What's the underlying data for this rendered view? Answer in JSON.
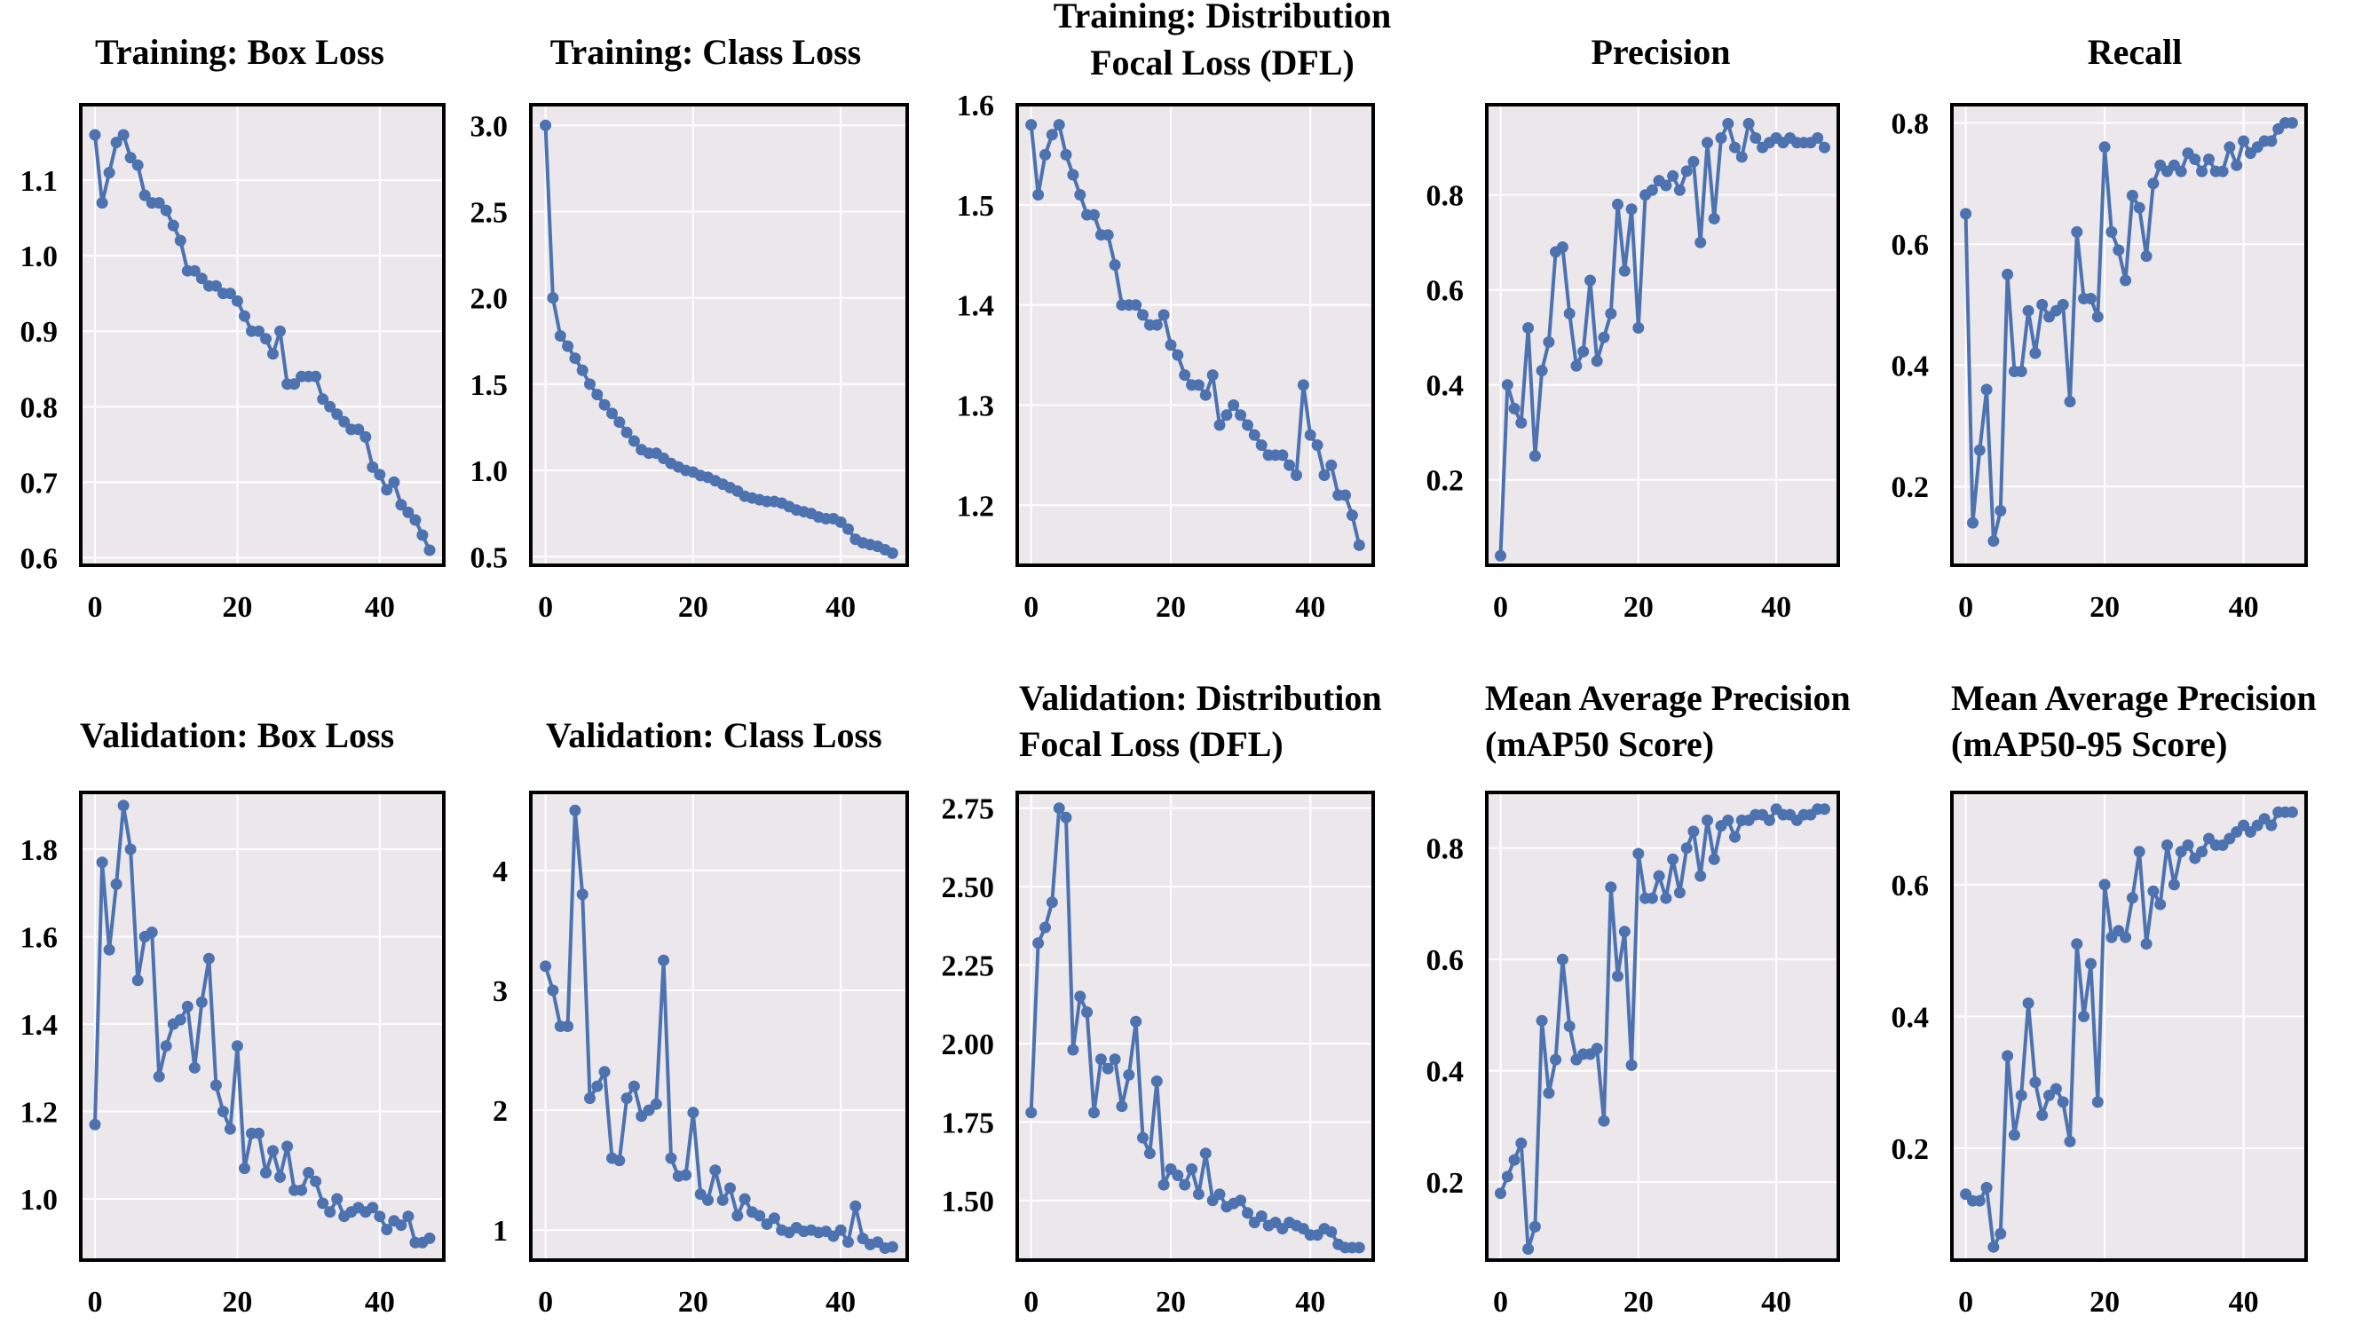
{
  "colors": {
    "line": "#4c72b0",
    "panel_bg": "#ebe7eb",
    "grid": "#ffffff",
    "frame": "#000000"
  },
  "chart_data": [
    {
      "type": "line",
      "title_lines": [
        "Training: Box Loss"
      ],
      "x": [
        0,
        1,
        2,
        3,
        4,
        5,
        6,
        7,
        8,
        9,
        10,
        11,
        12,
        13,
        14,
        15,
        16,
        17,
        18,
        19,
        20,
        21,
        22,
        23,
        24,
        25,
        26,
        27,
        28,
        29,
        30,
        31,
        32,
        33,
        34,
        35,
        36,
        37,
        38,
        39,
        40,
        41,
        42,
        43,
        44,
        45,
        46,
        47
      ],
      "values": [
        1.16,
        1.07,
        1.11,
        1.15,
        1.16,
        1.13,
        1.12,
        1.08,
        1.07,
        1.07,
        1.06,
        1.04,
        1.02,
        0.98,
        0.98,
        0.97,
        0.96,
        0.96,
        0.95,
        0.95,
        0.94,
        0.92,
        0.9,
        0.9,
        0.89,
        0.87,
        0.9,
        0.83,
        0.83,
        0.84,
        0.84,
        0.84,
        0.81,
        0.8,
        0.79,
        0.78,
        0.77,
        0.77,
        0.76,
        0.72,
        0.71,
        0.69,
        0.7,
        0.67,
        0.66,
        0.65,
        0.63,
        0.61
      ],
      "xlim": [
        -2,
        49
      ],
      "ylim": [
        0.59,
        1.2
      ],
      "xticks": [
        0,
        20,
        40
      ],
      "yticks": [
        0.6,
        0.7,
        0.8,
        0.9,
        1.0,
        1.1
      ],
      "yticklabels": [
        "0.6",
        "0.7",
        "0.8",
        "0.9",
        "1.0",
        "1.1"
      ]
    },
    {
      "type": "line",
      "title_lines": [
        "Training: Class Loss"
      ],
      "x": [
        0,
        1,
        2,
        3,
        4,
        5,
        6,
        7,
        8,
        9,
        10,
        11,
        12,
        13,
        14,
        15,
        16,
        17,
        18,
        19,
        20,
        21,
        22,
        23,
        24,
        25,
        26,
        27,
        28,
        29,
        30,
        31,
        32,
        33,
        34,
        35,
        36,
        37,
        38,
        39,
        40,
        41,
        42,
        43,
        44,
        45,
        46,
        47
      ],
      "values": [
        3.0,
        2.0,
        1.78,
        1.72,
        1.65,
        1.58,
        1.5,
        1.44,
        1.38,
        1.33,
        1.28,
        1.22,
        1.17,
        1.12,
        1.1,
        1.1,
        1.07,
        1.04,
        1.02,
        1.0,
        0.99,
        0.97,
        0.96,
        0.94,
        0.92,
        0.9,
        0.88,
        0.85,
        0.84,
        0.83,
        0.82,
        0.82,
        0.81,
        0.79,
        0.77,
        0.76,
        0.75,
        0.73,
        0.72,
        0.72,
        0.7,
        0.66,
        0.6,
        0.58,
        0.57,
        0.56,
        0.54,
        0.52
      ],
      "xlim": [
        -2,
        49
      ],
      "ylim": [
        0.45,
        3.12
      ],
      "xticks": [
        0,
        20,
        40
      ],
      "yticks": [
        0.5,
        1.0,
        1.5,
        2.0,
        2.5,
        3.0
      ],
      "yticklabels": [
        "0.5",
        "1.0",
        "1.5",
        "2.0",
        "2.5",
        "3.0"
      ]
    },
    {
      "type": "line",
      "title_lines": [
        "Training: Distribution",
        "Focal Loss (DFL)"
      ],
      "x": [
        0,
        1,
        2,
        3,
        4,
        5,
        6,
        7,
        8,
        9,
        10,
        11,
        12,
        13,
        14,
        15,
        16,
        17,
        18,
        19,
        20,
        21,
        22,
        23,
        24,
        25,
        26,
        27,
        28,
        29,
        30,
        31,
        32,
        33,
        34,
        35,
        36,
        37,
        38,
        39,
        40,
        41,
        42,
        43,
        44,
        45,
        46,
        47
      ],
      "values": [
        1.58,
        1.51,
        1.55,
        1.57,
        1.58,
        1.55,
        1.53,
        1.51,
        1.49,
        1.49,
        1.47,
        1.47,
        1.44,
        1.4,
        1.4,
        1.4,
        1.39,
        1.38,
        1.38,
        1.39,
        1.36,
        1.35,
        1.33,
        1.32,
        1.32,
        1.31,
        1.33,
        1.28,
        1.29,
        1.3,
        1.29,
        1.28,
        1.27,
        1.26,
        1.25,
        1.25,
        1.25,
        1.24,
        1.23,
        1.32,
        1.27,
        1.26,
        1.23,
        1.24,
        1.21,
        1.21,
        1.19,
        1.16
      ],
      "xlim": [
        -2,
        49
      ],
      "ylim": [
        1.14,
        1.6
      ],
      "xticks": [
        0,
        20,
        40
      ],
      "yticks": [
        1.2,
        1.3,
        1.4,
        1.5,
        1.6
      ],
      "yticklabels": [
        "1.2",
        "1.3",
        "1.4",
        "1.5",
        "1.6"
      ]
    },
    {
      "type": "line",
      "title_lines": [
        "Precision"
      ],
      "x": [
        0,
        1,
        2,
        3,
        4,
        5,
        6,
        7,
        8,
        9,
        10,
        11,
        12,
        13,
        14,
        15,
        16,
        17,
        18,
        19,
        20,
        21,
        22,
        23,
        24,
        25,
        26,
        27,
        28,
        29,
        30,
        31,
        32,
        33,
        34,
        35,
        36,
        37,
        38,
        39,
        40,
        41,
        42,
        43,
        44,
        45,
        46,
        47
      ],
      "values": [
        0.04,
        0.4,
        0.35,
        0.32,
        0.52,
        0.25,
        0.43,
        0.49,
        0.68,
        0.69,
        0.55,
        0.44,
        0.47,
        0.62,
        0.45,
        0.5,
        0.55,
        0.78,
        0.64,
        0.77,
        0.52,
        0.8,
        0.81,
        0.83,
        0.82,
        0.84,
        0.81,
        0.85,
        0.87,
        0.7,
        0.91,
        0.75,
        0.92,
        0.95,
        0.9,
        0.88,
        0.95,
        0.92,
        0.9,
        0.91,
        0.92,
        0.91,
        0.92,
        0.91,
        0.91,
        0.91,
        0.92,
        0.9
      ],
      "xlim": [
        -2,
        49
      ],
      "ylim": [
        0.02,
        0.99
      ],
      "xticks": [
        0,
        20,
        40
      ],
      "yticks": [
        0.2,
        0.4,
        0.6,
        0.8
      ],
      "yticklabels": [
        "0.2",
        "0.4",
        "0.6",
        "0.8"
      ]
    },
    {
      "type": "line",
      "title_lines": [
        "Recall"
      ],
      "x": [
        0,
        1,
        2,
        3,
        4,
        5,
        6,
        7,
        8,
        9,
        10,
        11,
        12,
        13,
        14,
        15,
        16,
        17,
        18,
        19,
        20,
        21,
        22,
        23,
        24,
        25,
        26,
        27,
        28,
        29,
        30,
        31,
        32,
        33,
        34,
        35,
        36,
        37,
        38,
        39,
        40,
        41,
        42,
        43,
        44,
        45,
        46,
        47
      ],
      "values": [
        0.65,
        0.14,
        0.26,
        0.36,
        0.11,
        0.16,
        0.55,
        0.39,
        0.39,
        0.49,
        0.42,
        0.5,
        0.48,
        0.49,
        0.5,
        0.34,
        0.62,
        0.51,
        0.51,
        0.48,
        0.76,
        0.62,
        0.59,
        0.54,
        0.68,
        0.66,
        0.58,
        0.7,
        0.73,
        0.72,
        0.73,
        0.72,
        0.75,
        0.74,
        0.72,
        0.74,
        0.72,
        0.72,
        0.76,
        0.73,
        0.77,
        0.75,
        0.76,
        0.77,
        0.77,
        0.79,
        0.8,
        0.8
      ],
      "xlim": [
        -2,
        49
      ],
      "ylim": [
        0.07,
        0.83
      ],
      "xticks": [
        0,
        20,
        40
      ],
      "yticks": [
        0.2,
        0.4,
        0.6,
        0.8
      ],
      "yticklabels": [
        "0.2",
        "0.4",
        "0.6",
        "0.8"
      ]
    },
    {
      "type": "line",
      "title_lines": [
        "Validation: Box Loss"
      ],
      "x": [
        0,
        1,
        2,
        3,
        4,
        5,
        6,
        7,
        8,
        9,
        10,
        11,
        12,
        13,
        14,
        15,
        16,
        17,
        18,
        19,
        20,
        21,
        22,
        23,
        24,
        25,
        26,
        27,
        28,
        29,
        30,
        31,
        32,
        33,
        34,
        35,
        36,
        37,
        38,
        39,
        40,
        41,
        42,
        43,
        44,
        45,
        46,
        47
      ],
      "values": [
        1.17,
        1.77,
        1.57,
        1.72,
        1.9,
        1.8,
        1.5,
        1.6,
        1.61,
        1.28,
        1.35,
        1.4,
        1.41,
        1.44,
        1.3,
        1.45,
        1.55,
        1.26,
        1.2,
        1.16,
        1.35,
        1.07,
        1.15,
        1.15,
        1.06,
        1.11,
        1.05,
        1.12,
        1.02,
        1.02,
        1.06,
        1.04,
        0.99,
        0.97,
        1.0,
        0.96,
        0.97,
        0.98,
        0.97,
        0.98,
        0.96,
        0.93,
        0.95,
        0.94,
        0.96,
        0.9,
        0.9,
        0.91
      ],
      "xlim": [
        -2,
        49
      ],
      "ylim": [
        0.86,
        1.93
      ],
      "xticks": [
        0,
        20,
        40
      ],
      "yticks": [
        1.0,
        1.2,
        1.4,
        1.6,
        1.8
      ],
      "yticklabels": [
        "1.0",
        "1.2",
        "1.4",
        "1.6",
        "1.8"
      ]
    },
    {
      "type": "line",
      "title_lines": [
        "Validation: Class Loss"
      ],
      "x": [
        0,
        1,
        2,
        3,
        4,
        5,
        6,
        7,
        8,
        9,
        10,
        11,
        12,
        13,
        14,
        15,
        16,
        17,
        18,
        19,
        20,
        21,
        22,
        23,
        24,
        25,
        26,
        27,
        28,
        29,
        30,
        31,
        32,
        33,
        34,
        35,
        36,
        37,
        38,
        39,
        40,
        41,
        42,
        43,
        44,
        45,
        46,
        47
      ],
      "values": [
        3.2,
        3.0,
        2.7,
        2.7,
        4.5,
        3.8,
        2.1,
        2.2,
        2.32,
        1.6,
        1.58,
        2.1,
        2.2,
        1.95,
        2.0,
        2.05,
        3.25,
        1.6,
        1.45,
        1.46,
        1.98,
        1.3,
        1.25,
        1.5,
        1.25,
        1.35,
        1.12,
        1.26,
        1.15,
        1.12,
        1.05,
        1.1,
        1.0,
        0.98,
        1.02,
        0.99,
        1.0,
        0.98,
        0.99,
        0.95,
        1.0,
        0.9,
        1.2,
        0.93,
        0.88,
        0.9,
        0.85,
        0.86
      ],
      "xlim": [
        -2,
        49
      ],
      "ylim": [
        0.75,
        4.65
      ],
      "xticks": [
        0,
        20,
        40
      ],
      "yticks": [
        1,
        2,
        3,
        4
      ],
      "yticklabels": [
        "1",
        "2",
        "3",
        "4"
      ]
    },
    {
      "type": "line",
      "title_lines": [
        "Validation: Distribution",
        "Focal Loss (DFL)"
      ],
      "x": [
        0,
        1,
        2,
        3,
        4,
        5,
        6,
        7,
        8,
        9,
        10,
        11,
        12,
        13,
        14,
        15,
        16,
        17,
        18,
        19,
        20,
        21,
        22,
        23,
        24,
        25,
        26,
        27,
        28,
        29,
        30,
        31,
        32,
        33,
        34,
        35,
        36,
        37,
        38,
        39,
        40,
        41,
        42,
        43,
        44,
        45,
        46,
        47
      ],
      "values": [
        1.78,
        2.32,
        2.37,
        2.45,
        2.75,
        2.72,
        1.98,
        2.15,
        2.1,
        1.78,
        1.95,
        1.92,
        1.95,
        1.8,
        1.9,
        2.07,
        1.7,
        1.65,
        1.88,
        1.55,
        1.6,
        1.58,
        1.55,
        1.6,
        1.52,
        1.65,
        1.5,
        1.52,
        1.48,
        1.49,
        1.5,
        1.46,
        1.43,
        1.45,
        1.42,
        1.43,
        1.41,
        1.43,
        1.42,
        1.41,
        1.39,
        1.39,
        1.41,
        1.4,
        1.36,
        1.35,
        1.35,
        1.35
      ],
      "xlim": [
        -2,
        49
      ],
      "ylim": [
        1.31,
        2.8
      ],
      "xticks": [
        0,
        20,
        40
      ],
      "yticks": [
        1.5,
        1.75,
        2.0,
        2.25,
        2.5,
        2.75
      ],
      "yticklabels": [
        "1.50",
        "1.75",
        "2.00",
        "2.25",
        "2.50",
        "2.75"
      ]
    },
    {
      "type": "line",
      "title_lines": [
        "Mean Average Precision",
        "(mAP50 Score)"
      ],
      "x": [
        0,
        1,
        2,
        3,
        4,
        5,
        6,
        7,
        8,
        9,
        10,
        11,
        12,
        13,
        14,
        15,
        16,
        17,
        18,
        19,
        20,
        21,
        22,
        23,
        24,
        25,
        26,
        27,
        28,
        29,
        30,
        31,
        32,
        33,
        34,
        35,
        36,
        37,
        38,
        39,
        40,
        41,
        42,
        43,
        44,
        45,
        46,
        47
      ],
      "values": [
        0.18,
        0.21,
        0.24,
        0.27,
        0.08,
        0.12,
        0.49,
        0.36,
        0.42,
        0.6,
        0.48,
        0.42,
        0.43,
        0.43,
        0.44,
        0.31,
        0.73,
        0.57,
        0.65,
        0.41,
        0.79,
        0.71,
        0.71,
        0.75,
        0.71,
        0.78,
        0.72,
        0.8,
        0.83,
        0.75,
        0.85,
        0.78,
        0.84,
        0.85,
        0.82,
        0.85,
        0.85,
        0.86,
        0.86,
        0.85,
        0.87,
        0.86,
        0.86,
        0.85,
        0.86,
        0.86,
        0.87,
        0.87
      ],
      "xlim": [
        -2,
        49
      ],
      "ylim": [
        0.06,
        0.9
      ],
      "xticks": [
        0,
        20,
        40
      ],
      "yticks": [
        0.2,
        0.4,
        0.6,
        0.8
      ],
      "yticklabels": [
        "0.2",
        "0.4",
        "0.6",
        "0.8"
      ]
    },
    {
      "type": "line",
      "title_lines": [
        "Mean Average Precision",
        "(mAP50-95 Score)"
      ],
      "x": [
        0,
        1,
        2,
        3,
        4,
        5,
        6,
        7,
        8,
        9,
        10,
        11,
        12,
        13,
        14,
        15,
        16,
        17,
        18,
        19,
        20,
        21,
        22,
        23,
        24,
        25,
        26,
        27,
        28,
        29,
        30,
        31,
        32,
        33,
        34,
        35,
        36,
        37,
        38,
        39,
        40,
        41,
        42,
        43,
        44,
        45,
        46,
        47
      ],
      "values": [
        0.13,
        0.12,
        0.12,
        0.14,
        0.05,
        0.07,
        0.34,
        0.22,
        0.28,
        0.42,
        0.3,
        0.25,
        0.28,
        0.29,
        0.27,
        0.21,
        0.51,
        0.4,
        0.48,
        0.27,
        0.6,
        0.52,
        0.53,
        0.52,
        0.58,
        0.65,
        0.51,
        0.59,
        0.57,
        0.66,
        0.6,
        0.65,
        0.66,
        0.64,
        0.65,
        0.67,
        0.66,
        0.66,
        0.67,
        0.68,
        0.69,
        0.68,
        0.69,
        0.7,
        0.69,
        0.71,
        0.71,
        0.71
      ],
      "xlim": [
        -2,
        49
      ],
      "ylim": [
        0.03,
        0.74
      ],
      "xticks": [
        0,
        20,
        40
      ],
      "yticks": [
        0.2,
        0.4,
        0.6
      ],
      "yticklabels": [
        "0.2",
        "0.4",
        "0.6"
      ]
    }
  ]
}
